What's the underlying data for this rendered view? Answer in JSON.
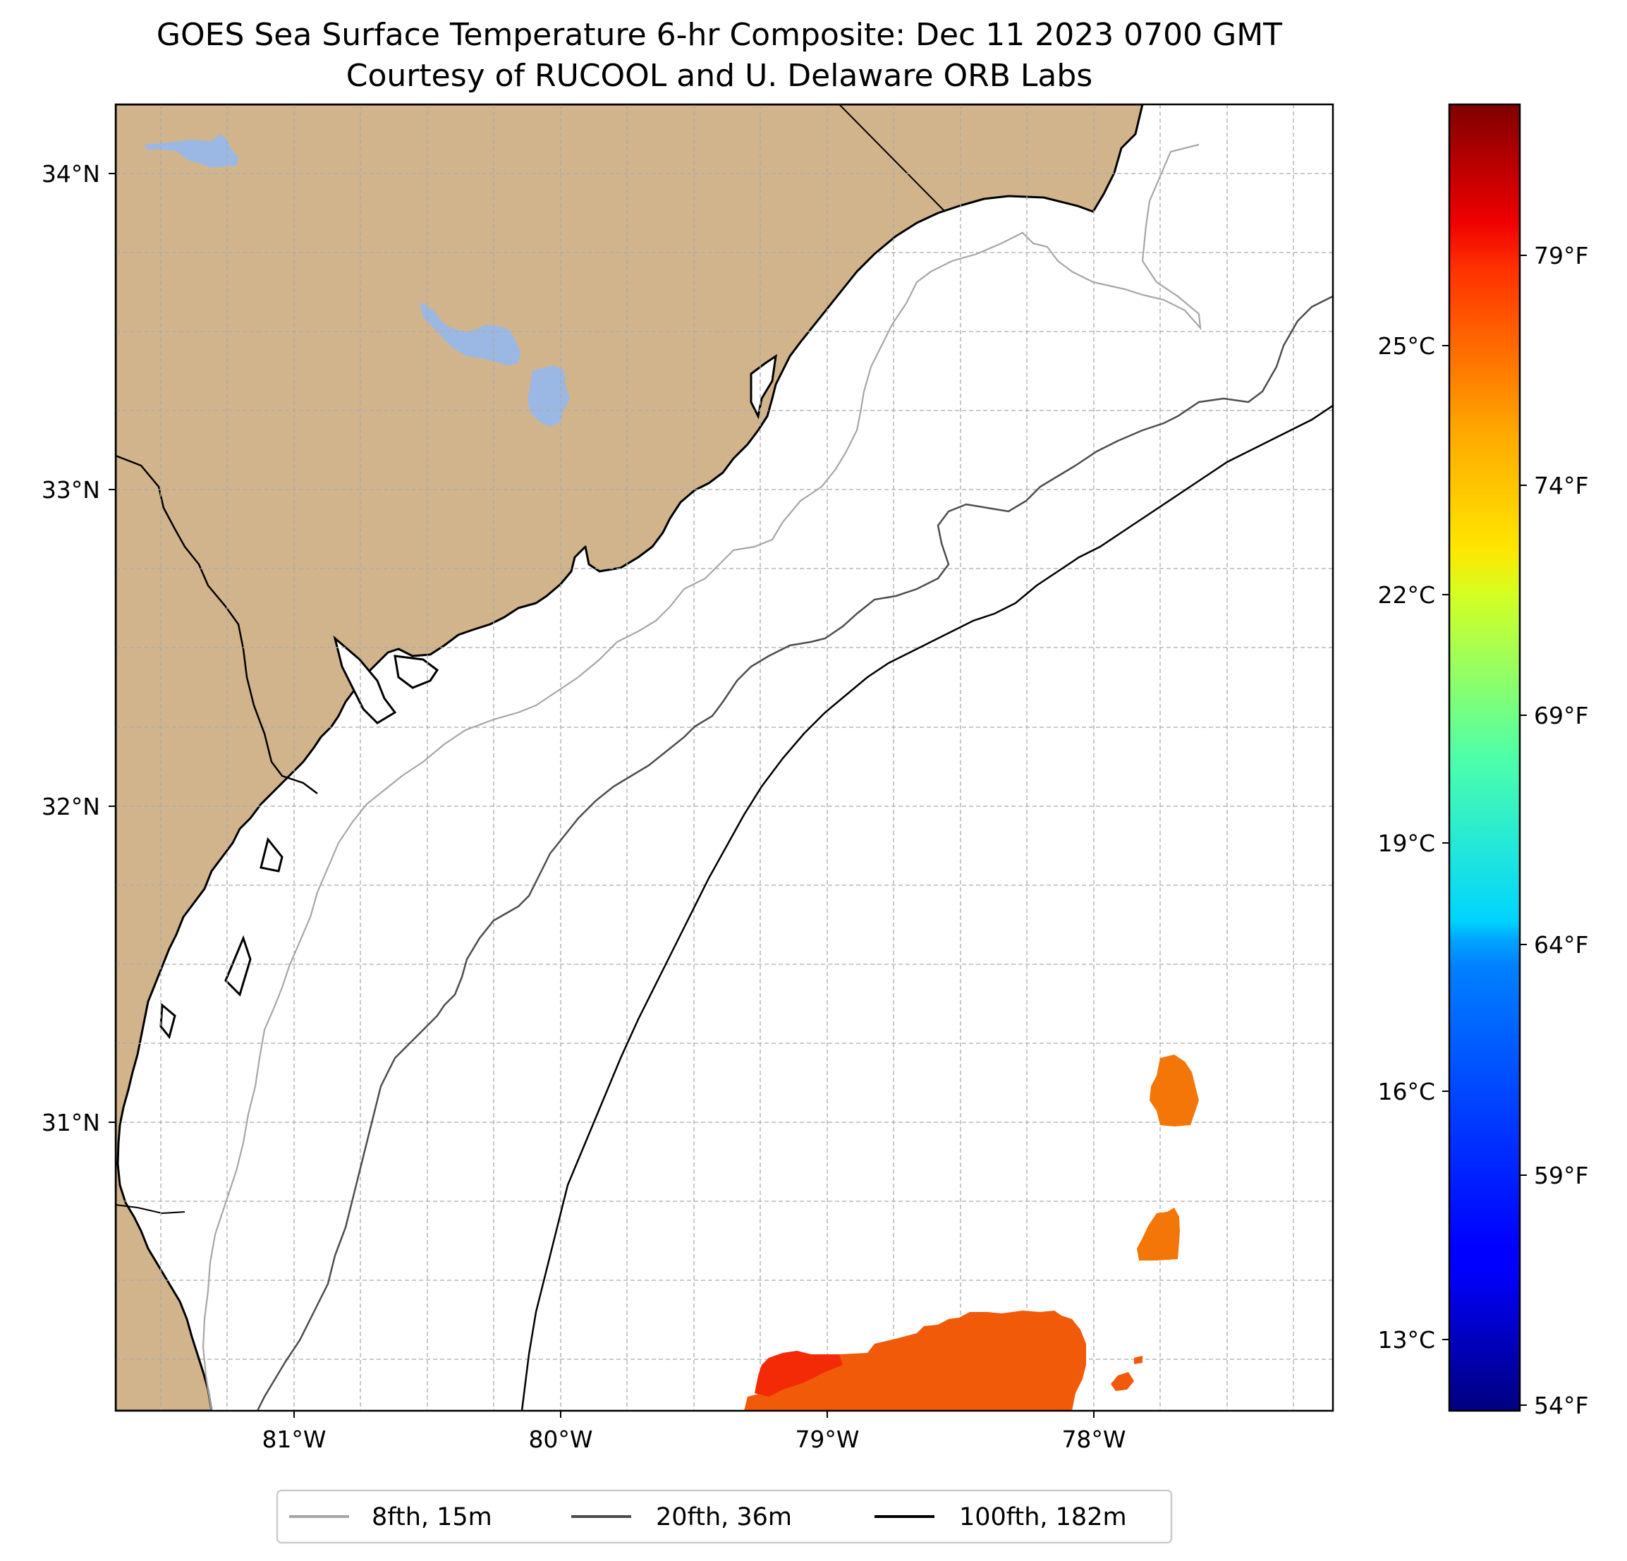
{
  "title": {
    "line1": "GOES Sea Surface Temperature 6-hr Composite: Dec 11 2023 0700 GMT",
    "line2": "Courtesy of RUCOOL and U. Delaware ORB Labs"
  },
  "map": {
    "lon_range": [
      -81.68,
      -77.12
    ],
    "lat_range": [
      30.07,
      34.22
    ],
    "lat_ticks": [
      {
        "value": 34,
        "label": "34°N"
      },
      {
        "value": 33,
        "label": "33°N"
      },
      {
        "value": 32,
        "label": "32°N"
      },
      {
        "value": 31,
        "label": "31°N"
      }
    ],
    "lon_ticks": [
      {
        "value": -81,
        "label": "81°W"
      },
      {
        "value": -80,
        "label": "80°W"
      },
      {
        "value": -79,
        "label": "79°W"
      },
      {
        "value": -78,
        "label": "78°W"
      }
    ],
    "gridlines": true,
    "colors": {
      "land": "#d2b48c",
      "lakes": "#9ab8e3",
      "ocean": "#ffffff",
      "coastline": "#000000",
      "isobath_8fth": "#a6a6a6",
      "isobath_20fth": "#4d4d4d",
      "isobath_100fth": "#000000",
      "sst_patch_main": "#f05a08",
      "sst_patch_warm": "#f42a06",
      "sst_patch_east": "#f47608"
    },
    "sst_patches": [
      {
        "name": "main-south",
        "approx_temp_c": 26.3
      },
      {
        "name": "northeast-upper",
        "approx_temp_c": 25.8
      },
      {
        "name": "northeast-lower",
        "approx_temp_c": 25.6
      }
    ]
  },
  "colorbar": {
    "colormap": "jet",
    "range_c": [
      12.2,
      28.0
    ],
    "celsius_ticks": [
      {
        "value": 25,
        "label": "25°C"
      },
      {
        "value": 22,
        "label": "22°C"
      },
      {
        "value": 19,
        "label": "19°C"
      },
      {
        "value": 16,
        "label": "16°C"
      },
      {
        "value": 13,
        "label": "13°C"
      }
    ],
    "fahrenheit_ticks": [
      {
        "value": 79,
        "label": "79°F"
      },
      {
        "value": 74,
        "label": "74°F"
      },
      {
        "value": 69,
        "label": "69°F"
      },
      {
        "value": 64,
        "label": "64°F"
      },
      {
        "value": 59,
        "label": "59°F"
      },
      {
        "value": 54,
        "label": "54°F"
      }
    ]
  },
  "legend": {
    "location": "bottom-center",
    "items": [
      {
        "label": "8fth, 15m",
        "color": "#a6a6a6"
      },
      {
        "label": "20fth, 36m",
        "color": "#4d4d4d"
      },
      {
        "label": "100fth, 182m",
        "color": "#000000"
      }
    ]
  }
}
